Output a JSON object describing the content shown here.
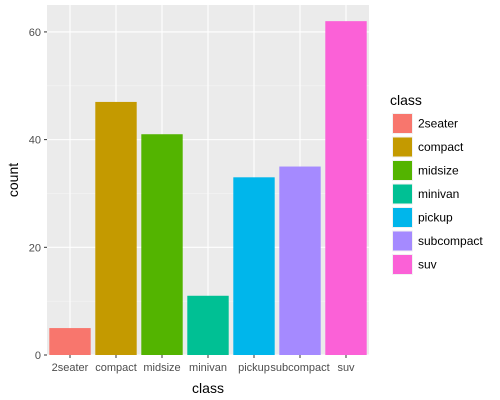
{
  "chart_data": {
    "type": "bar",
    "title": "",
    "xlabel": "class",
    "ylabel": "count",
    "categories": [
      "2seater",
      "compact",
      "midsize",
      "minivan",
      "pickup",
      "subcompact",
      "suv"
    ],
    "values": [
      5,
      47,
      41,
      11,
      33,
      35,
      62
    ],
    "colors": [
      "#F8766D",
      "#C49A00",
      "#53B400",
      "#00C094",
      "#00B6EB",
      "#A58AFF",
      "#FB61D7"
    ],
    "ylim": [
      0,
      65
    ],
    "yticks": [
      0,
      20,
      40,
      60
    ],
    "grid": true,
    "panel_background": "#EBEBEB",
    "legend": {
      "title": "class",
      "placement": "right",
      "entries": [
        "2seater",
        "compact",
        "midsize",
        "minivan",
        "pickup",
        "subcompact",
        "suv"
      ]
    }
  }
}
